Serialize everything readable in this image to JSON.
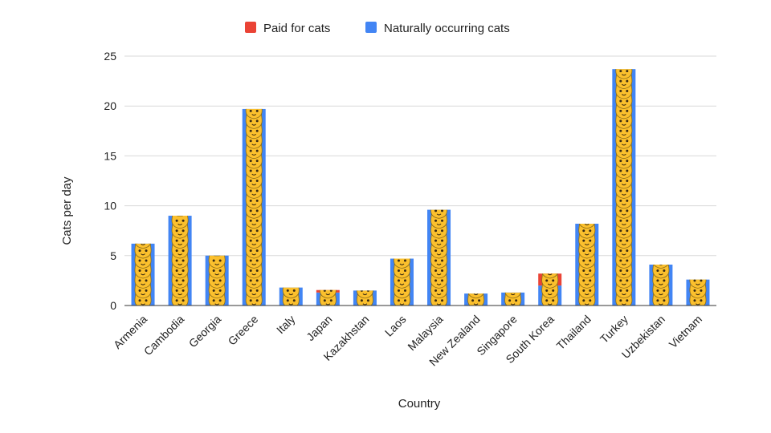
{
  "chart_data": {
    "type": "bar",
    "stacked": true,
    "categories": [
      "Armenia",
      "Cambodia",
      "Georgia",
      "Greece",
      "Italy",
      "Japan",
      "Kazakhstan",
      "Laos",
      "Malaysia",
      "New Zealand",
      "Singapore",
      "South Korea",
      "Thailand",
      "Turkey",
      "Uzbekistan",
      "Vietnam"
    ],
    "series": [
      {
        "name": "Paid for cats",
        "color": "#ea4335",
        "values": [
          0,
          0,
          0,
          0,
          0,
          0.25,
          0,
          0,
          0,
          0,
          0,
          1.2,
          0,
          0,
          0,
          0
        ]
      },
      {
        "name": "Naturally occurring cats",
        "color": "#4285f4",
        "values": [
          6.2,
          9.0,
          5.0,
          19.7,
          1.8,
          1.3,
          1.5,
          4.7,
          9.6,
          1.2,
          1.3,
          2.0,
          8.2,
          23.7,
          4.1,
          2.6
        ]
      }
    ],
    "xlabel": "Country",
    "ylabel": "Cats per day",
    "ylim": [
      0,
      25
    ],
    "yticks": [
      "0",
      "5",
      "10",
      "15",
      "20",
      "25"
    ],
    "grid": true,
    "legend_position": "top",
    "bar_pattern_icon": "cat-face-emoji"
  }
}
